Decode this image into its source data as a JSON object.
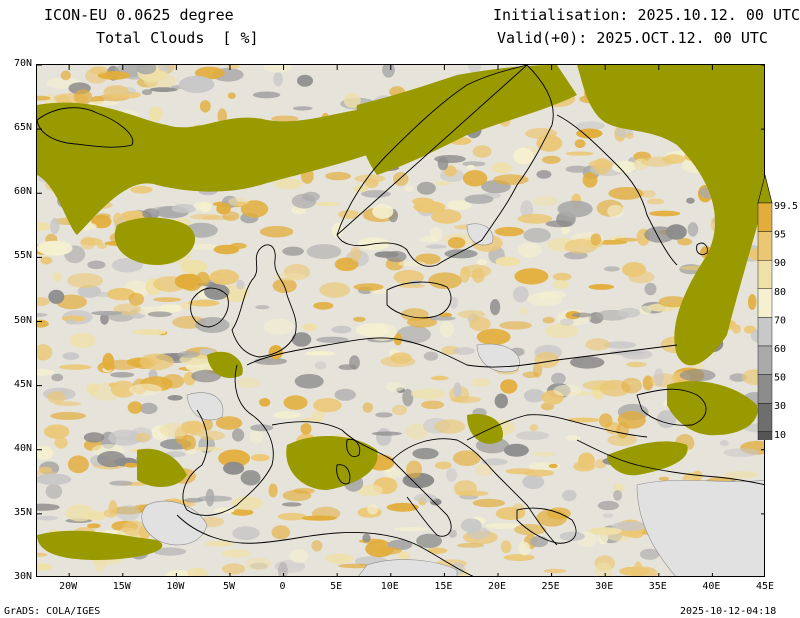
{
  "header": {
    "model": "ICON-EU 0.0625 degree",
    "variable": "Total Clouds  [ %]",
    "init": "Initialisation: 2025.10.12. 00 UTC",
    "valid": "Valid(+0): 2025.OCT.12. 00 UTC"
  },
  "footer": {
    "credit": "GrADS: COLA/IGES",
    "timestamp": "2025-10-12-04:18"
  },
  "map": {
    "lon_range": [
      -23,
      45
    ],
    "lat_range": [
      30,
      70
    ],
    "lon_ticks": [
      "20W",
      "15W",
      "10W",
      "5W",
      "0",
      "5E",
      "10E",
      "15E",
      "20E",
      "25E",
      "30E",
      "35E",
      "40E",
      "45E"
    ],
    "lat_ticks": [
      "70N",
      "65N",
      "60N",
      "55N",
      "50N",
      "45N",
      "40N",
      "35N",
      "30N"
    ]
  },
  "colorbar": {
    "labels": [
      "99.5",
      "95",
      "90",
      "80",
      "70",
      "60",
      "50",
      "30",
      "10"
    ],
    "colors": [
      "#999900",
      "#e2ad3a",
      "#ebc774",
      "#efe0a8",
      "#f4f0d0",
      "#c8c8c8",
      "#aaaaaa",
      "#8c8c8c",
      "#6e6e6e",
      "#555555"
    ],
    "background_color": "#e1e1e1"
  }
}
